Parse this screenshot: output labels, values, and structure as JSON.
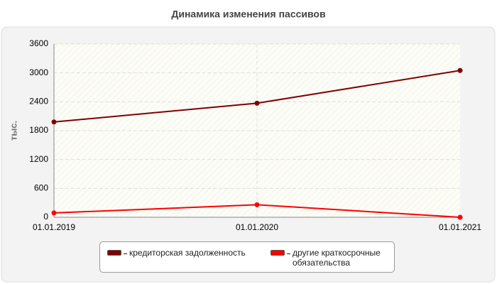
{
  "chart_data": {
    "type": "line",
    "title": "Динамика изменения пассивов",
    "y_label": "тыс.",
    "categories": [
      "01.01.2019",
      "01.01.2020",
      "01.01.2021"
    ],
    "series": [
      {
        "name": "кредиторская задолженность",
        "color": "#800000",
        "values": [
          1980,
          2370,
          3050
        ]
      },
      {
        "name": "другие краткосрочные обязательства",
        "color": "#ff0000",
        "values": [
          90,
          260,
          0
        ]
      }
    ],
    "ylim": [
      0,
      3600
    ],
    "yticks": [
      0,
      600,
      1200,
      1800,
      2400,
      3000,
      3600
    ],
    "grid": true
  }
}
